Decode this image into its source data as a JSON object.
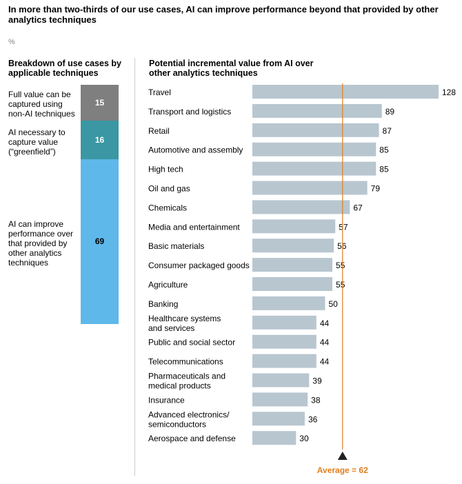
{
  "title": "In more than two-thirds of our use cases, AI can improve performance beyond that provided by other analytics techniques",
  "unit": "%",
  "left_panel": {
    "heading": "Breakdown of use cases by applicable techniques",
    "segments": [
      {
        "label": "Full value can be captured using non-AI techniques",
        "value": 15,
        "color": "#7F7F7F",
        "text_color": "#ffffff"
      },
      {
        "label": "AI necessary to capture value (“greenfield”)",
        "value": 16,
        "color": "#3A97A3",
        "text_color": "#ffffff"
      },
      {
        "label": "AI can improve performance over that provided by other analytics techniques",
        "value": 69,
        "color": "#5EB8EA",
        "text_color": "#000000"
      }
    ]
  },
  "right_panel": {
    "heading": "Potential incremental value from AI over other analytics techniques"
  },
  "chart_data": [
    {
      "type": "bar",
      "orientation": "vertical-stacked",
      "categories": [
        "Full value can be captured using non-AI techniques",
        "AI necessary to capture value (“greenfield”)",
        "AI can improve performance over that provided by other analytics techniques"
      ],
      "values": [
        15,
        16,
        69
      ],
      "title": "Breakdown of use cases by applicable techniques",
      "ylabel": "%",
      "ylim": [
        0,
        100
      ],
      "grid": false,
      "legend": "none"
    },
    {
      "type": "bar",
      "orientation": "horizontal",
      "title": "Potential incremental value from AI over other analytics techniques",
      "categories": [
        "Travel",
        "Transport and logistics",
        "Retail",
        "Automotive and assembly",
        "High tech",
        "Oil and gas",
        "Chemicals",
        "Media and entertainment",
        "Basic materials",
        "Consumer packaged goods",
        "Agriculture",
        "Banking",
        "Healthcare systems and services",
        "Public and social sector",
        "Telecommunications",
        "Pharmaceuticals and medical products",
        "Insurance",
        "Advanced electronics/ semiconductors",
        "Aerospace and defense"
      ],
      "category_lines": [
        [
          "Travel"
        ],
        [
          "Transport and logistics"
        ],
        [
          "Retail"
        ],
        [
          "Automotive and assembly"
        ],
        [
          "High tech"
        ],
        [
          "Oil and gas"
        ],
        [
          "Chemicals"
        ],
        [
          "Media and entertainment"
        ],
        [
          "Basic materials"
        ],
        [
          "Consumer packaged goods"
        ],
        [
          "Agriculture"
        ],
        [
          "Banking"
        ],
        [
          "Healthcare systems",
          "and services"
        ],
        [
          "Public and social sector"
        ],
        [
          "Telecommunications"
        ],
        [
          "Pharmaceuticals and",
          "medical products"
        ],
        [
          "Insurance"
        ],
        [
          "Advanced electronics/",
          "semiconductors"
        ],
        [
          "Aerospace and defense"
        ]
      ],
      "values": [
        128,
        89,
        87,
        85,
        85,
        79,
        67,
        57,
        56,
        55,
        55,
        50,
        44,
        44,
        44,
        39,
        38,
        36,
        30
      ],
      "bar_color": "#B8C6D0",
      "xlim": [
        0,
        128
      ],
      "grid": false,
      "reference_line": {
        "value": 62,
        "label": "Average = 62",
        "color": "#E27D1E"
      }
    }
  ]
}
